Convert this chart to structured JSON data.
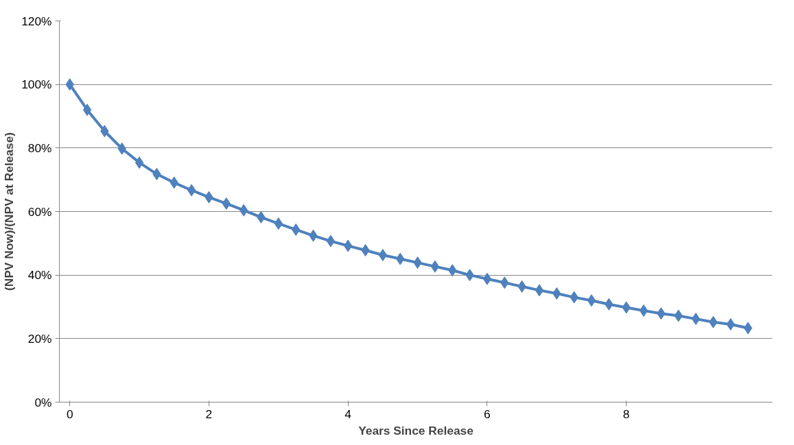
{
  "chart_data": {
    "type": "line",
    "xlabel": "Years Since Release",
    "ylabel": "(NPV Now)/(NPV at Release)",
    "x": [
      0,
      0.25,
      0.5,
      0.75,
      1,
      1.25,
      1.5,
      1.75,
      2,
      2.25,
      2.5,
      2.75,
      3,
      3.25,
      3.5,
      3.75,
      4,
      4.25,
      4.5,
      4.75,
      5,
      5.25,
      5.5,
      5.75,
      6,
      6.25,
      6.5,
      6.75,
      7,
      7.25,
      7.5,
      7.75,
      8,
      8.25,
      8.5,
      8.75,
      9,
      9.25,
      9.5,
      9.75
    ],
    "series": [
      {
        "color": "#4f81bd",
        "values": [
          100,
          92,
          85.3,
          79.8,
          75.4,
          71.8,
          69.1,
          66.7,
          64.5,
          62.5,
          60.4,
          58.2,
          56.2,
          54.3,
          52.4,
          50.7,
          49.2,
          47.8,
          46.3,
          45.1,
          43.9,
          42.7,
          41.5,
          40,
          38.8,
          37.6,
          36.4,
          35.2,
          34.2,
          33,
          32,
          30.8,
          29.8,
          28.8,
          27.9,
          27.2,
          26.2,
          25.2,
          24.5,
          23.3
        ]
      }
    ],
    "xlim": [
      -0.15,
      10.1
    ],
    "xticks": [
      0,
      2,
      4,
      6,
      8
    ],
    "ylim": [
      0,
      120
    ],
    "yticks": [
      {
        "value": 0,
        "label": "0%"
      },
      {
        "value": 20,
        "label": "20%"
      },
      {
        "value": 40,
        "label": "40%"
      },
      {
        "value": 60,
        "label": "60%"
      },
      {
        "value": 80,
        "label": "80%"
      },
      {
        "value": 100,
        "label": "100%"
      },
      {
        "value": 120,
        "label": "120%"
      }
    ],
    "grid": "y",
    "marker": "diamond",
    "line_style": "solid"
  }
}
